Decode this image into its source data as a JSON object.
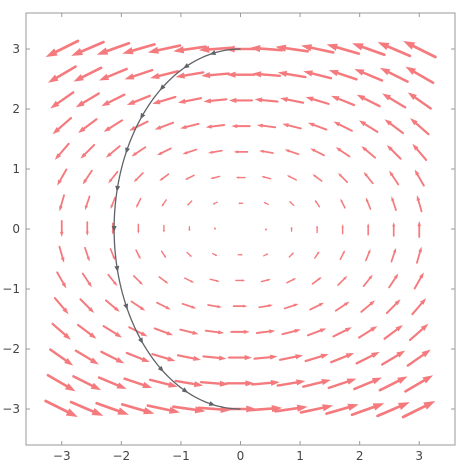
{
  "chart_data": {
    "type": "vector_field",
    "field": {
      "vx": "-y",
      "vy": "0.5*x",
      "domain_x": [
        -3,
        3
      ],
      "domain_y": [
        -3,
        3
      ],
      "grid": 15
    },
    "xlim": [
      -3.6,
      3.6
    ],
    "ylim": [
      -3.6,
      3.6
    ],
    "xticks": [
      -3,
      -2,
      -1,
      0,
      1,
      2,
      3
    ],
    "yticks": [
      -3,
      -2,
      -1,
      0,
      1,
      2,
      3
    ],
    "xtick_labels": [
      "−3",
      "−2",
      "−1",
      "0",
      "1",
      "2",
      "3"
    ],
    "ytick_labels": [
      "−3",
      "−2",
      "−1",
      "0",
      "1",
      "2",
      "3"
    ],
    "trajectory": {
      "start": [
        0,
        3
      ],
      "end": [
        0,
        -3
      ],
      "orbit": {
        "x_radius": 2.1213,
        "y_radius": 3
      },
      "direction": "counterclockwise"
    },
    "grid": false,
    "legend": "none",
    "colors": {
      "arrows": "#f47a7e",
      "trajectory": "#5f6368",
      "frame": "#9a9a9a",
      "background": "#ffffff"
    }
  }
}
